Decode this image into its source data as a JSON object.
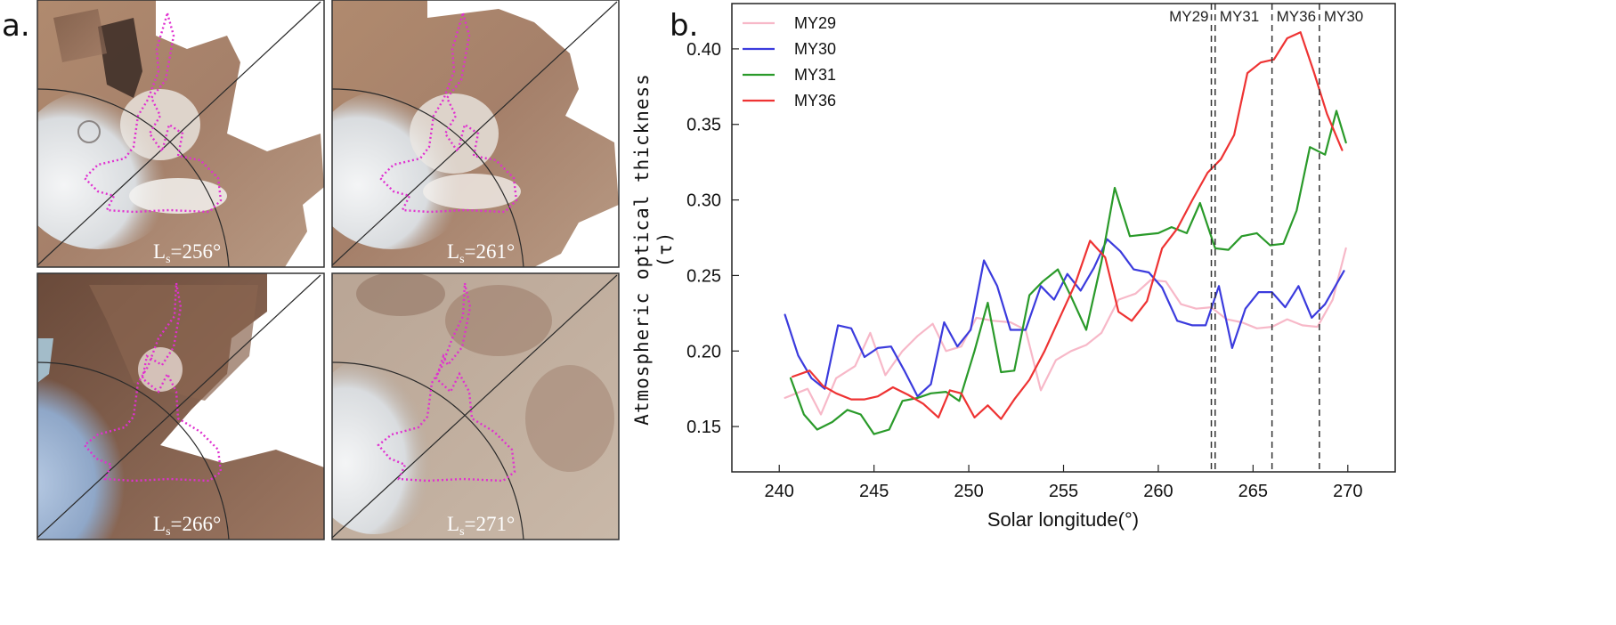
{
  "panel_a": {
    "letter": "a.",
    "tiles": [
      {
        "ls_prefix": "L",
        "ls_sub": "s",
        "ls_value": "=256°"
      },
      {
        "ls_prefix": "L",
        "ls_sub": "s",
        "ls_value": "=261°"
      },
      {
        "ls_prefix": "L",
        "ls_sub": "s",
        "ls_value": "=266°"
      },
      {
        "ls_prefix": "L",
        "ls_sub": "s",
        "ls_value": "=271°"
      }
    ],
    "colors": {
      "outline": "#e030d0",
      "terrain": "#a07a60",
      "ice": "#eef0f2"
    }
  },
  "panel_b": {
    "letter": "b."
  },
  "chart_data": {
    "type": "line",
    "title": "",
    "xlabel": "Solar longitude(°)",
    "ylabel": "Atmospheric optical thickness",
    "ylabel_symbol": "(τ)",
    "xlim": [
      237.5,
      272.5
    ],
    "ylim": [
      0.12,
      0.43
    ],
    "xticks": [
      240,
      245,
      250,
      255,
      260,
      265,
      270
    ],
    "yticks": [
      0.15,
      0.2,
      0.25,
      0.3,
      0.35,
      0.4
    ],
    "ytick_labels": [
      "0.15",
      "0.20",
      "0.25",
      "0.30",
      "0.35",
      "0.40"
    ],
    "legend_position": "top-left",
    "series": [
      {
        "name": "MY29",
        "color": "#f7b8c8",
        "x": [
          240.3,
          241.5,
          242.2,
          243.0,
          244.0,
          244.8,
          245.6,
          246.5,
          247.3,
          248.1,
          248.8,
          249.6,
          250.4,
          251.3,
          252.2,
          253.0,
          253.8,
          254.6,
          255.4,
          256.2,
          257.0,
          257.9,
          258.8,
          259.6,
          260.4,
          261.2,
          262.0,
          262.8,
          263.6,
          264.4,
          265.2,
          266.0,
          266.8,
          267.6,
          268.4,
          269.2,
          269.9
        ],
        "y": [
          0.169,
          0.175,
          0.158,
          0.182,
          0.19,
          0.212,
          0.184,
          0.2,
          0.21,
          0.218,
          0.2,
          0.203,
          0.222,
          0.22,
          0.219,
          0.214,
          0.174,
          0.194,
          0.2,
          0.204,
          0.212,
          0.234,
          0.238,
          0.247,
          0.246,
          0.231,
          0.228,
          0.229,
          0.221,
          0.219,
          0.215,
          0.216,
          0.221,
          0.217,
          0.216,
          0.234,
          0.268
        ]
      },
      {
        "name": "MY30",
        "color": "#3b3bdd",
        "x": [
          240.3,
          241.0,
          241.7,
          242.4,
          243.1,
          243.8,
          244.5,
          245.2,
          245.9,
          246.6,
          247.3,
          248.0,
          248.7,
          249.4,
          250.1,
          250.8,
          251.5,
          252.2,
          253.0,
          253.8,
          254.5,
          255.2,
          255.9,
          256.6,
          257.3,
          258.0,
          258.7,
          259.5,
          260.2,
          261.0,
          261.8,
          262.5,
          263.2,
          263.9,
          264.6,
          265.3,
          266.0,
          266.7,
          267.4,
          268.1,
          268.8,
          269.8
        ],
        "y": [
          0.224,
          0.197,
          0.182,
          0.175,
          0.217,
          0.215,
          0.196,
          0.202,
          0.203,
          0.187,
          0.17,
          0.178,
          0.219,
          0.203,
          0.214,
          0.26,
          0.243,
          0.214,
          0.214,
          0.243,
          0.234,
          0.251,
          0.24,
          0.255,
          0.274,
          0.266,
          0.254,
          0.252,
          0.242,
          0.22,
          0.217,
          0.217,
          0.243,
          0.202,
          0.228,
          0.239,
          0.239,
          0.229,
          0.243,
          0.222,
          0.231,
          0.253
        ]
      },
      {
        "name": "MY31",
        "color": "#2a9a2a",
        "x": [
          240.6,
          241.3,
          242.0,
          242.8,
          243.6,
          244.3,
          245.0,
          245.8,
          246.5,
          247.3,
          248.0,
          248.8,
          249.5,
          250.3,
          251.0,
          251.7,
          252.4,
          253.2,
          253.9,
          254.7,
          255.4,
          256.2,
          257.0,
          257.7,
          258.5,
          259.2,
          260.0,
          260.7,
          261.5,
          262.2,
          263.0,
          263.7,
          264.4,
          265.2,
          265.9,
          266.6,
          267.3,
          268.0,
          268.8,
          269.4,
          269.9
        ],
        "y": [
          0.182,
          0.158,
          0.148,
          0.153,
          0.161,
          0.158,
          0.145,
          0.148,
          0.167,
          0.169,
          0.172,
          0.173,
          0.167,
          0.2,
          0.232,
          0.186,
          0.187,
          0.237,
          0.246,
          0.254,
          0.236,
          0.214,
          0.259,
          0.308,
          0.276,
          0.277,
          0.278,
          0.282,
          0.278,
          0.298,
          0.268,
          0.267,
          0.276,
          0.278,
          0.27,
          0.271,
          0.293,
          0.335,
          0.33,
          0.359,
          0.338
        ]
      },
      {
        "name": "MY36",
        "color": "#ee3333",
        "x": [
          240.7,
          241.6,
          242.3,
          243.0,
          243.8,
          244.5,
          245.2,
          246.0,
          246.8,
          247.6,
          248.4,
          249.0,
          249.6,
          250.3,
          251.0,
          251.7,
          252.4,
          253.2,
          254.0,
          254.8,
          255.6,
          256.4,
          257.2,
          257.9,
          258.6,
          259.4,
          260.2,
          261.0,
          261.8,
          262.6,
          263.3,
          264.0,
          264.7,
          265.4,
          266.1,
          266.8,
          267.5,
          268.2,
          268.9,
          269.7
        ],
        "y": [
          0.183,
          0.187,
          0.177,
          0.172,
          0.168,
          0.168,
          0.17,
          0.176,
          0.171,
          0.165,
          0.156,
          0.174,
          0.172,
          0.156,
          0.164,
          0.155,
          0.168,
          0.181,
          0.2,
          0.222,
          0.244,
          0.273,
          0.262,
          0.226,
          0.22,
          0.233,
          0.268,
          0.281,
          0.3,
          0.318,
          0.327,
          0.343,
          0.384,
          0.391,
          0.393,
          0.407,
          0.411,
          0.385,
          0.357,
          0.333
        ]
      }
    ],
    "vertical_lines": [
      {
        "x": 262.8,
        "label": "MY29"
      },
      {
        "x": 263.0,
        "label": "MY31"
      },
      {
        "x": 266.0,
        "label": "MY36"
      },
      {
        "x": 268.5,
        "label": "MY30"
      }
    ]
  }
}
